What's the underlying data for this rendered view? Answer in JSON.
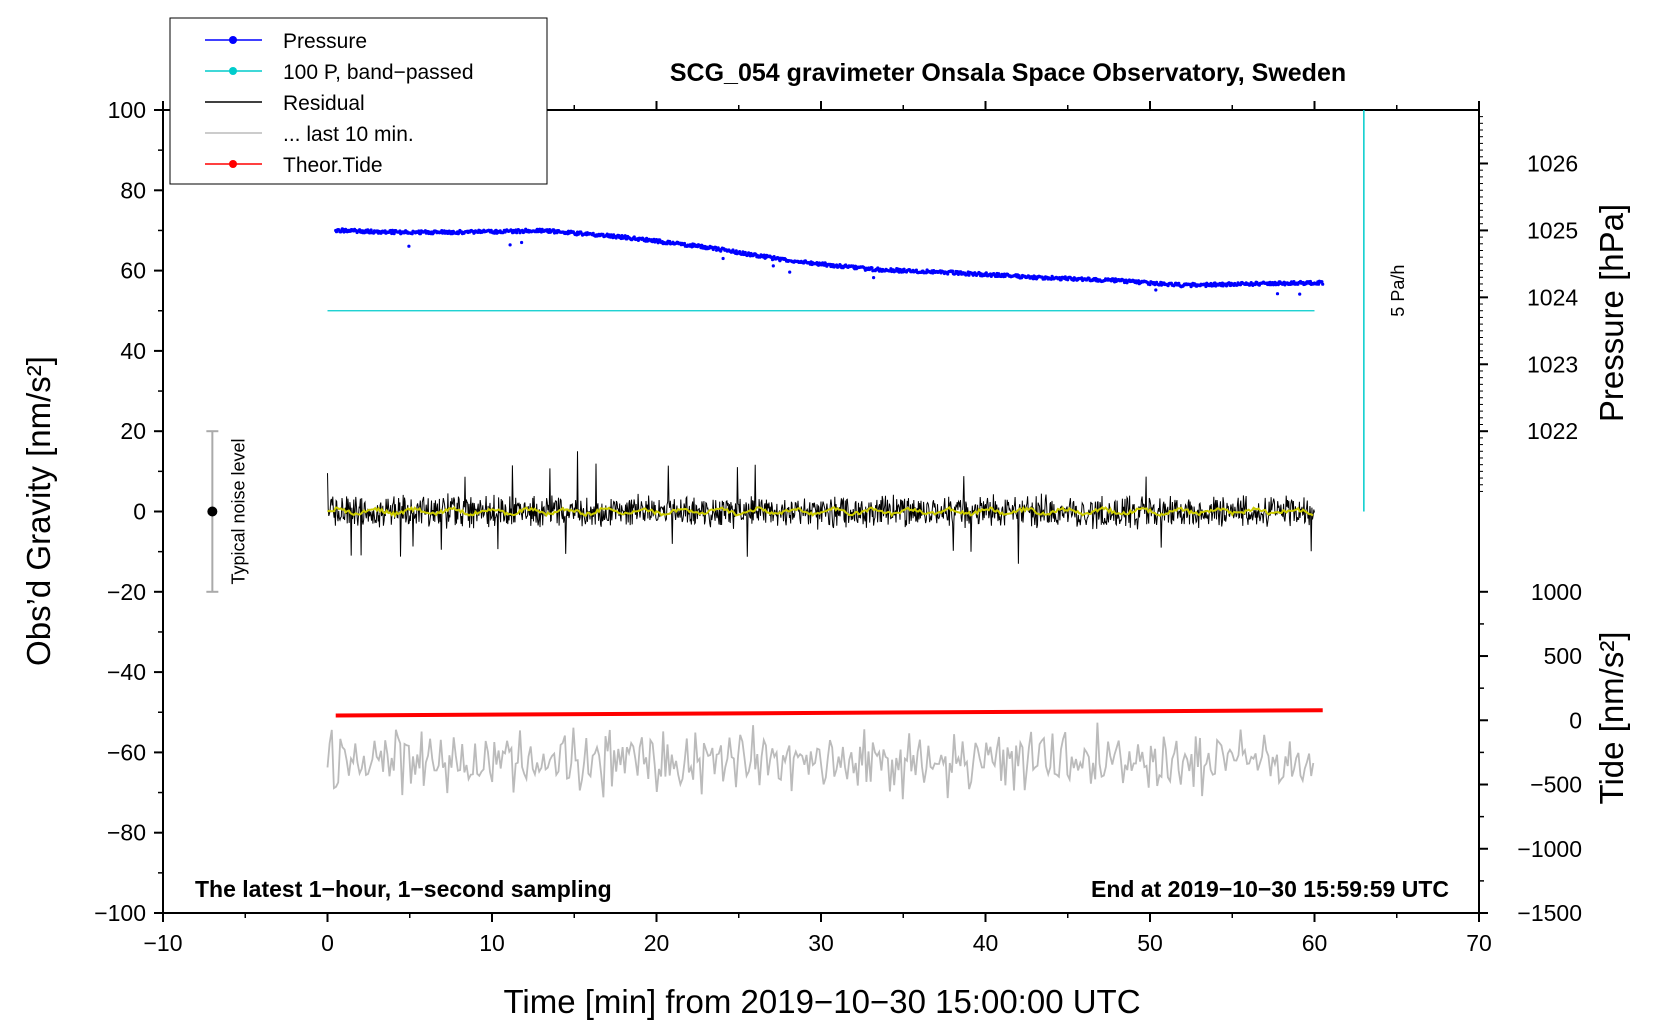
{
  "chart_data": {
    "type": "line",
    "title": "SCG_054 gravimeter Onsala Space Observatory, Sweden",
    "xlabel": "Time [min] from 2019−10−30 15:00:00 UTC",
    "ylabel": "Obs’d Gravity [nm/s²]",
    "xlim": [
      -10,
      70
    ],
    "ylim": [
      -100,
      100
    ],
    "xticks": [
      -10,
      0,
      10,
      20,
      30,
      40,
      50,
      60,
      70
    ],
    "xtick_labels": [
      "−10",
      "0",
      "10",
      "20",
      "30",
      "40",
      "50",
      "60",
      "70"
    ],
    "yticks": [
      -100,
      -80,
      -60,
      -40,
      -20,
      0,
      20,
      40,
      60,
      80,
      100
    ],
    "ytick_labels": [
      "−100",
      "−80",
      "−60",
      "−40",
      "−20",
      "0",
      "20",
      "40",
      "60",
      "80",
      "100"
    ],
    "pressure_axis": {
      "label": "Pressure [hPa]",
      "ticks": [
        1022,
        1023,
        1024,
        1025,
        1026
      ],
      "tick_labels": [
        "1022",
        "1023",
        "1024",
        "1025",
        "1026"
      ],
      "gravity_at_1022": 20,
      "gravity_per_hPa": 16.67
    },
    "tide_axis": {
      "label": "Tide [nm/s²]",
      "range": [
        -1500,
        1000
      ],
      "ticks": [
        -1500,
        -1000,
        -500,
        0,
        500,
        1000
      ],
      "tick_labels": [
        "−1500",
        "−1000",
        "−500",
        "0",
        "500",
        "1000"
      ]
    },
    "series": [
      {
        "name": "Pressure",
        "color": "#0000ff",
        "unit": "hPa",
        "x": [
          0.5,
          5,
          10,
          13,
          18,
          23,
          28,
          33,
          38,
          43,
          48,
          52,
          56,
          60.5
        ],
        "values": [
          1025.0,
          1024.97,
          1024.98,
          1025.0,
          1024.9,
          1024.75,
          1024.55,
          1024.42,
          1024.37,
          1024.3,
          1024.25,
          1024.18,
          1024.2,
          1024.22
        ]
      },
      {
        "name": "100 P, band−passed",
        "color": "#00cccc",
        "unit": "nm/s²",
        "x": [
          0,
          60
        ],
        "values": [
          50,
          50
        ]
      },
      {
        "name": "Residual",
        "color": "#000000",
        "unit": "nm/s²",
        "x_range": [
          0,
          60
        ],
        "level": 0,
        "typical_amplitude": 4,
        "max_peak": 15,
        "min_peak": -13
      },
      {
        "name": "Residual (smoothed)",
        "color": "#cccc00",
        "unit": "nm/s²",
        "x_range": [
          0,
          60
        ],
        "level": 0
      },
      {
        "name": "... last 10 min.",
        "color": "#bbbbbb",
        "unit": "nm/s²",
        "x_range": [
          0,
          60
        ],
        "level": -62,
        "amplitude": 9
      },
      {
        "name": "Theor.Tide",
        "color": "#ff0000",
        "unit": "nm/s²",
        "x": [
          0.5,
          60.5
        ],
        "values": [
          -50.8,
          -49.5
        ]
      }
    ],
    "legend": {
      "position": "top-left",
      "entries": [
        {
          "label": "Pressure",
          "color": "#0000ff",
          "marker": true
        },
        {
          "label": "100 P, band−passed",
          "color": "#00cccc",
          "marker": true
        },
        {
          "label": "Residual",
          "color": "#000000",
          "marker": false
        },
        {
          "label": "... last 10 min.",
          "color": "#bbbbbb",
          "marker": false
        },
        {
          "label": "Theor.Tide",
          "color": "#ff0000",
          "marker": true
        }
      ]
    },
    "noise_bar": {
      "label": "Typical noise level",
      "x": -7,
      "center": 0,
      "low": -20,
      "high": 20
    },
    "scale_bar": {
      "label": "5 Pa/h",
      "x": 63,
      "y_low": 0,
      "y_high": 100,
      "color": "#00cccc"
    },
    "annotations": {
      "bottom_left": "The latest 1−hour, 1−second sampling",
      "bottom_right": "End at 2019−10−30 15:59:59 UTC"
    }
  }
}
